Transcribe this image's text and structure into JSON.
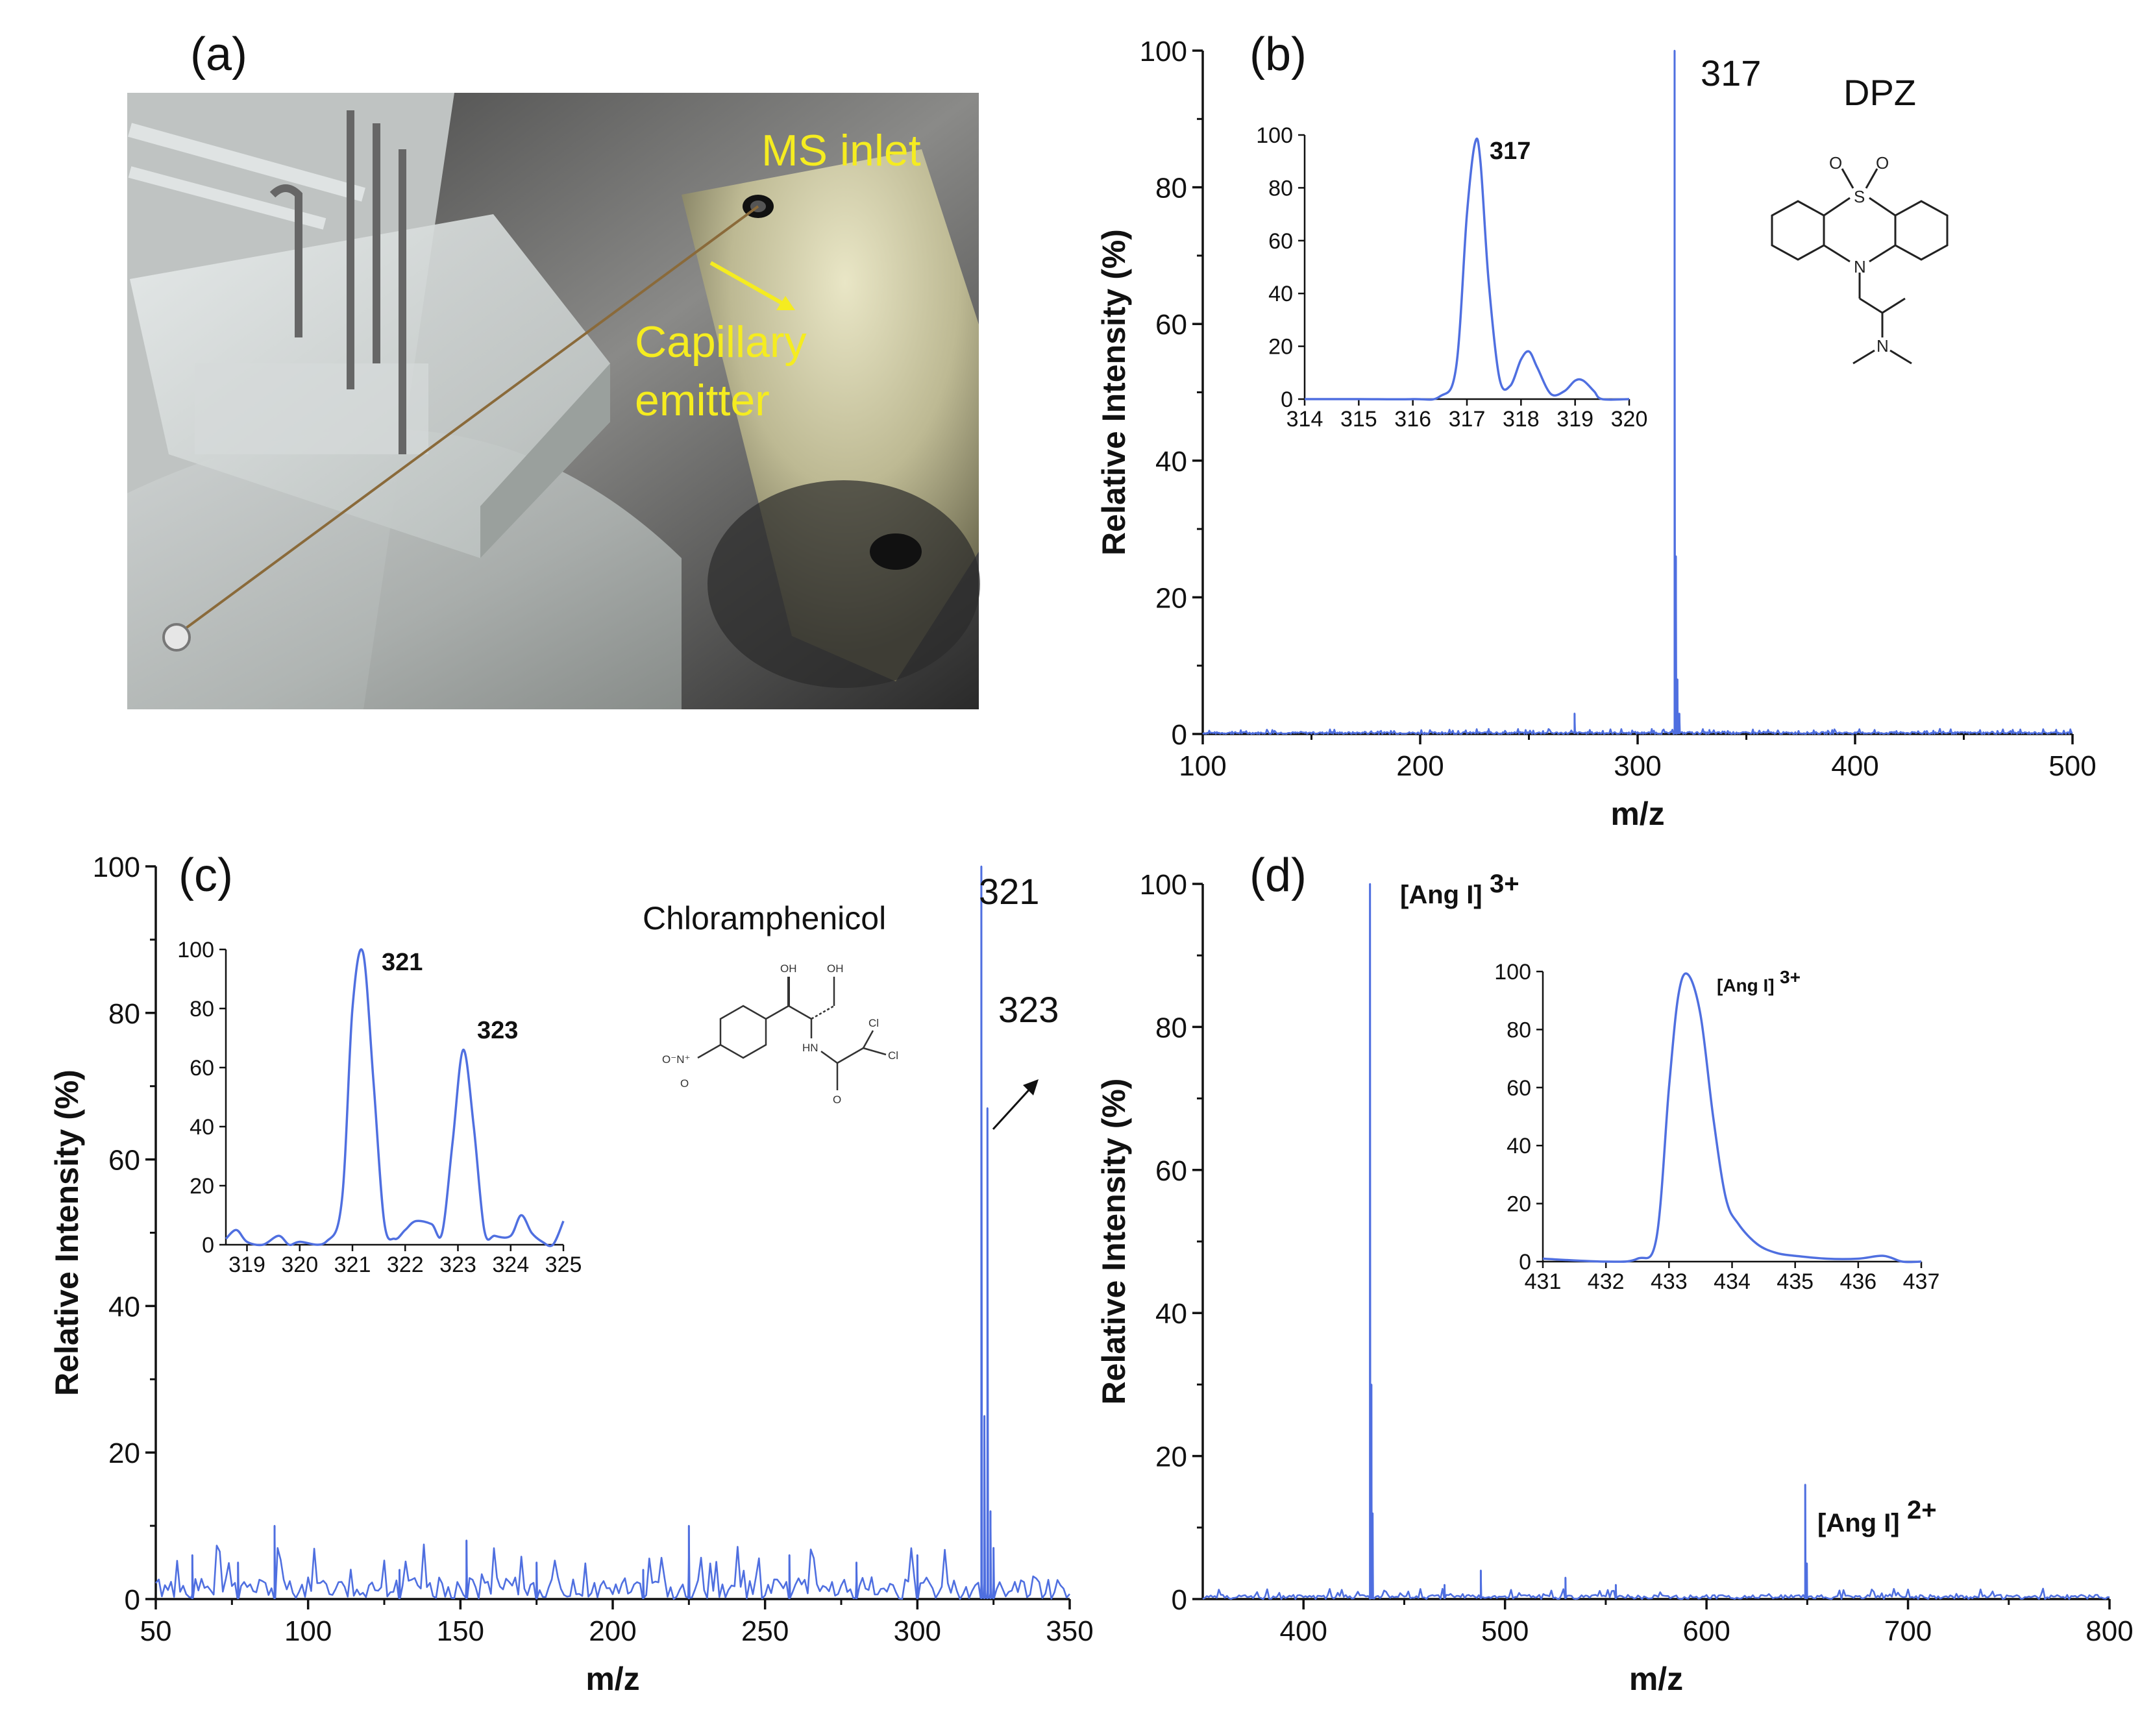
{
  "panels": {
    "a": {
      "label": "(a)",
      "photo_labels": {
        "inlet": "MS inlet",
        "emitter_line1": "Capillary",
        "emitter_line2": "emitter"
      }
    },
    "b": {
      "label": "(b)",
      "compound": "DPZ",
      "peak_label": "317",
      "inset_peak_label": "317"
    },
    "c": {
      "label": "(c)",
      "compound": "Chloramphenicol",
      "peak_label_1": "321",
      "peak_label_2": "323",
      "inset_peak_label_1": "321",
      "inset_peak_label_2": "323"
    },
    "d": {
      "label": "(d)",
      "ion_base": "[Ang I]",
      "charge_3": "3+",
      "charge_2": "2+"
    }
  },
  "structures": {
    "dpz": {
      "S": "S",
      "O": "O",
      "N_ring": "N",
      "N_amine": "N"
    },
    "chloramphenicol": {
      "OH1": "OH",
      "OH2": "OH",
      "Cl1": "Cl",
      "Cl2": "Cl",
      "NH": "HN",
      "O": "O",
      "NO2": "O⁻N⁺",
      "O2": "O"
    }
  },
  "colors": {
    "spectrum": "#4f6fe0",
    "axis": "#111111",
    "photo_text": "#f5ec20"
  },
  "chart_data": [
    {
      "id": "b",
      "type": "line",
      "xlabel": "m/z",
      "ylabel": "Relative Intensity (%)",
      "xlim": [
        100,
        500
      ],
      "ylim": [
        0,
        100
      ],
      "xticks": [
        100,
        200,
        300,
        400,
        500
      ],
      "yticks": [
        0,
        20,
        40,
        60,
        80,
        100
      ],
      "peaks": [
        [
          271,
          3
        ],
        [
          317,
          100
        ],
        [
          317.6,
          26
        ],
        [
          318.3,
          8
        ],
        [
          319.2,
          3
        ],
        [
          333,
          0.6
        ],
        [
          231,
          0.4
        ]
      ],
      "noise_level": 0.3
    },
    {
      "id": "b_inset",
      "type": "line",
      "xlim": [
        314,
        320
      ],
      "ylim": [
        0,
        100
      ],
      "xticks": [
        314,
        315,
        316,
        317,
        318,
        319,
        320
      ],
      "yticks": [
        0,
        20,
        40,
        60,
        80,
        100
      ],
      "x": [
        314,
        315,
        316,
        316.5,
        316.8,
        317.0,
        317.15,
        317.25,
        317.4,
        317.6,
        317.8,
        318.0,
        318.15,
        318.3,
        318.55,
        318.8,
        319.0,
        319.15,
        319.35,
        319.5,
        320
      ],
      "y": [
        0,
        0,
        0,
        1,
        12,
        70,
        97,
        90,
        45,
        8,
        5,
        15,
        18,
        12,
        2,
        3,
        7,
        7,
        3,
        0,
        0
      ]
    },
    {
      "id": "c",
      "type": "line",
      "xlabel": "m/z",
      "ylabel": "Relative Intensity (%)",
      "xlim": [
        50,
        350
      ],
      "ylim": [
        0,
        100
      ],
      "xticks": [
        50,
        100,
        150,
        200,
        250,
        300,
        350
      ],
      "yticks": [
        0,
        20,
        40,
        60,
        80,
        100
      ],
      "peaks": [
        [
          321,
          100
        ],
        [
          323,
          67
        ],
        [
          322,
          25
        ],
        [
          324,
          12
        ],
        [
          325,
          7
        ],
        [
          89,
          10
        ],
        [
          225,
          10
        ],
        [
          152,
          8
        ],
        [
          62,
          6
        ],
        [
          77,
          5
        ],
        [
          175,
          5
        ],
        [
          258,
          6
        ],
        [
          300,
          6
        ],
        [
          210,
          4
        ],
        [
          130,
          4
        ],
        [
          280,
          5
        ]
      ],
      "noise_level": 3
    },
    {
      "id": "c_inset",
      "type": "line",
      "xlim": [
        318.6,
        325
      ],
      "ylim": [
        0,
        100
      ],
      "xticks": [
        319,
        320,
        321,
        322,
        323,
        324,
        325
      ],
      "yticks": [
        0,
        20,
        40,
        60,
        80,
        100
      ],
      "x": [
        318.6,
        318.8,
        319,
        319.3,
        319.6,
        319.8,
        320,
        320.5,
        320.8,
        321.0,
        321.2,
        321.4,
        321.6,
        321.8,
        322.0,
        322.2,
        322.5,
        322.7,
        322.9,
        323.1,
        323.3,
        323.5,
        323.7,
        324.0,
        324.2,
        324.4,
        324.6,
        324.8,
        325
      ],
      "y": [
        2,
        5,
        1,
        0,
        3,
        0,
        1,
        1,
        15,
        80,
        99,
        55,
        8,
        2,
        5,
        8,
        7,
        4,
        35,
        66,
        40,
        5,
        3,
        3,
        10,
        4,
        1,
        0,
        8
      ]
    },
    {
      "id": "d",
      "type": "line",
      "xlabel": "m/z",
      "ylabel": "Relative Intensity (%)",
      "xlim": [
        350,
        800
      ],
      "ylim": [
        0,
        100
      ],
      "xticks": [
        400,
        500,
        600,
        700,
        800
      ],
      "yticks": [
        0,
        20,
        40,
        60,
        80,
        100
      ],
      "peaks": [
        [
          433,
          100
        ],
        [
          433.7,
          30
        ],
        [
          434.3,
          12
        ],
        [
          649,
          16
        ],
        [
          649.8,
          5
        ],
        [
          488,
          4
        ],
        [
          530,
          3
        ],
        [
          470,
          2
        ],
        [
          555,
          2
        ]
      ],
      "noise_level": 0.6
    },
    {
      "id": "d_inset",
      "type": "line",
      "xlim": [
        431,
        437
      ],
      "ylim": [
        0,
        100
      ],
      "xticks": [
        431,
        432,
        433,
        434,
        435,
        436,
        437
      ],
      "yticks": [
        0,
        20,
        40,
        60,
        80,
        100
      ],
      "x": [
        431,
        432,
        432.5,
        432.8,
        433.0,
        433.15,
        433.3,
        433.5,
        433.7,
        433.9,
        434.1,
        434.4,
        434.7,
        435,
        435.5,
        436,
        436.4,
        436.7,
        437
      ],
      "y": [
        1,
        0,
        1,
        8,
        60,
        92,
        99,
        85,
        50,
        22,
        13,
        6,
        3,
        2,
        1,
        1,
        2,
        0,
        0
      ]
    }
  ]
}
